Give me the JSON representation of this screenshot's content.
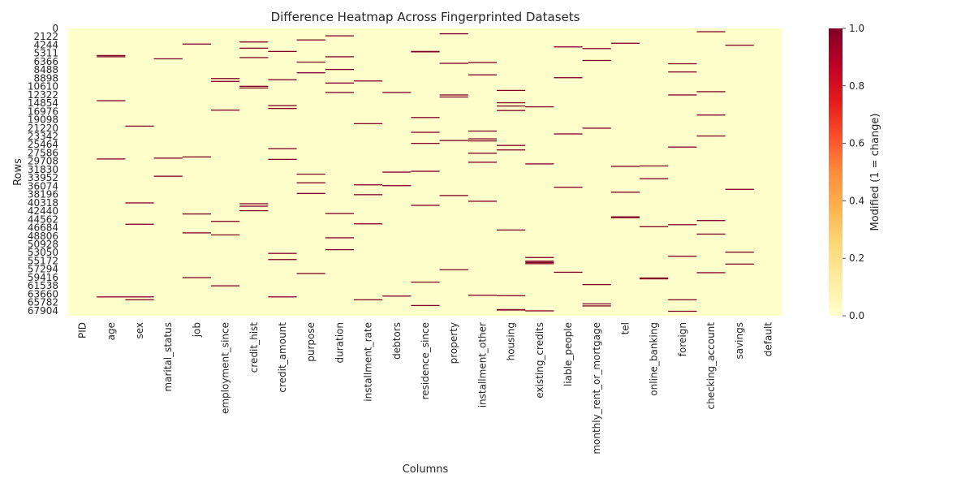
{
  "chart_data": {
    "type": "heatmap",
    "title": "Difference Heatmap Across Fingerprinted Datasets",
    "xlabel": "Columns",
    "ylabel": "Rows",
    "colorbar_label": "Modified (1 = change)",
    "colorbar_ticks": [
      "0.0",
      "0.2",
      "0.4",
      "0.6",
      "0.8",
      "1.0"
    ],
    "color_low": "#ffffcc",
    "color_high": "#800026",
    "colormap": "YlOrRd",
    "value_range": [
      0,
      1
    ],
    "n_rows": 70000,
    "y_tick_labels": [
      "0",
      "2122",
      "4244",
      "5311",
      "6366",
      "8488",
      "8898",
      "10610",
      "12322",
      "14854",
      "16976",
      "19098",
      "21220",
      "23342",
      "25464",
      "27586",
      "29708",
      "31830",
      "33952",
      "36074",
      "38196",
      "40318",
      "42440",
      "44562",
      "46684",
      "48806",
      "50928",
      "53050",
      "55172",
      "57294",
      "59416",
      "61538",
      "63660",
      "65782",
      "67904"
    ],
    "columns": [
      "PID",
      "age",
      "sex",
      "marital_status",
      "job",
      "employment_since",
      "credit_hist",
      "credit_amount",
      "purpose",
      "duration",
      "installment_rate",
      "debtors",
      "residence_since",
      "property",
      "installment_other",
      "housing",
      "existing_credits",
      "liable_people",
      "monthly_rent_or_mortgage",
      "tel",
      "online_banking",
      "foreign",
      "checking_account",
      "savings",
      "default"
    ],
    "changes": {
      "PID": [],
      "age": [
        6600,
        6900,
        17600,
        31800,
        65400
      ],
      "sex": [
        23800,
        42500,
        47700,
        65400,
        66100
      ],
      "marital_status": [
        7400,
        31600,
        36000
      ],
      "job": [
        3800,
        31300,
        45200,
        49800,
        60700
      ],
      "employment_since": [
        12200,
        12900,
        19900,
        47000,
        50300,
        62700
      ],
      "credit_hist": [
        3300,
        4800,
        7100,
        14100,
        14500,
        42700,
        43300,
        44400
      ],
      "credit_amount": [
        5600,
        12500,
        18800,
        19500,
        29300,
        31900,
        54800,
        56300,
        65400
      ],
      "purpose": [
        2800,
        8200,
        10800,
        35500,
        37600,
        40200,
        59700
      ],
      "duration": [
        1800,
        6900,
        10000,
        13300,
        15600,
        45100,
        51000,
        53900
      ],
      "installment_rate": [
        12800,
        23200,
        38100,
        40500,
        47600,
        66100
      ],
      "debtors": [
        15600,
        35000,
        38300,
        65200
      ],
      "residence_since": [
        5600,
        5700,
        21700,
        25300,
        28000,
        34800,
        43100,
        61800,
        67500
      ],
      "property": [
        1300,
        8500,
        16200,
        16700,
        27300,
        40700,
        58800
      ],
      "installment_other": [
        8300,
        11300,
        25000,
        26900,
        27400,
        30400,
        32600,
        42100,
        65000
      ],
      "housing": [
        15100,
        18100,
        18900,
        20000,
        28500,
        29600,
        49100,
        65100,
        68500,
        68600
      ],
      "existing_credits": [
        19100,
        33000,
        55800,
        56700,
        57000,
        57300,
        68800
      ],
      "liable_people": [
        4500,
        12000,
        25700,
        38700,
        59400
      ],
      "monthly_rent_or_mortgage": [
        4900,
        7800,
        24300,
        62400,
        67100,
        67600
      ],
      "tel": [
        3600,
        33600,
        39900,
        45900,
        46100
      ],
      "online_banking": [
        33500,
        36600,
        48300,
        60800,
        61000
      ],
      "foreign": [
        8600,
        10600,
        16200,
        28900,
        47800,
        55500,
        66100,
        68900
      ],
      "checking_account": [
        800,
        15400,
        21100,
        26200,
        46800,
        50100,
        59500
      ],
      "savings": [
        4100,
        39200,
        54500,
        57400
      ],
      "default": []
    }
  }
}
